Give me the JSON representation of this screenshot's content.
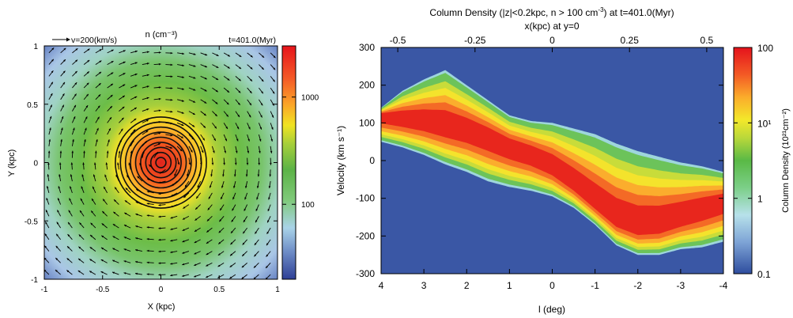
{
  "chart_data": [
    {
      "type": "heatmap",
      "title": "n (cm⁻³)",
      "annotation_left": "v=200(km/s)",
      "annotation_right": "t=401.0(Myr)",
      "xlabel": "X (kpc)",
      "ylabel": "Y (kpc)",
      "xlim": [
        -1,
        1
      ],
      "ylim": [
        -1,
        1
      ],
      "x_ticks": [
        {
          "value": -1,
          "label": "-1"
        },
        {
          "value": -0.5,
          "label": "-0.5"
        },
        {
          "value": 0,
          "label": "0"
        },
        {
          "value": 0.5,
          "label": "0.5"
        },
        {
          "value": 1,
          "label": "1"
        }
      ],
      "y_ticks": [
        {
          "value": 1,
          "label": "1"
        },
        {
          "value": 0.5,
          "label": "0.5"
        },
        {
          "value": 0,
          "label": "0"
        },
        {
          "value": -0.5,
          "label": "-0.5"
        },
        {
          "value": -1,
          "label": "-1"
        }
      ],
      "colorbar": {
        "scale": "log",
        "range": [
          20,
          3000
        ],
        "ticks": [
          {
            "value": 1000,
            "label": "1000"
          },
          {
            "value": 100,
            "label": "100"
          }
        ]
      },
      "vector_reference_kms": 200,
      "rotation": "clockwise"
    },
    {
      "type": "heatmap",
      "title_main": "Column Density (|z|<0.2kpc, n > 100 cm",
      "title_exp": "-3",
      "title_end": ") at t=401.0(Myr)",
      "top_axis_label": "x(kpc) at y=0",
      "xlabel": "l (deg)",
      "ylabel": "Velocity (km s⁻¹)",
      "xlim": [
        4,
        -4
      ],
      "ylim": [
        -300,
        300
      ],
      "x_ticks": [
        {
          "value": 4,
          "label": "4"
        },
        {
          "value": 3,
          "label": "3"
        },
        {
          "value": 2,
          "label": "2"
        },
        {
          "value": 1,
          "label": "1"
        },
        {
          "value": 0,
          "label": "0"
        },
        {
          "value": -1,
          "label": "-1"
        },
        {
          "value": -2,
          "label": "-2"
        },
        {
          "value": -3,
          "label": "-3"
        },
        {
          "value": -4,
          "label": "-4"
        }
      ],
      "top_ticks": [
        {
          "value": -0.5,
          "label": "-0.5"
        },
        {
          "value": -0.25,
          "label": "-0.25"
        },
        {
          "value": 0,
          "label": "0"
        },
        {
          "value": 0.25,
          "label": "0.25"
        },
        {
          "value": 0.5,
          "label": "0.5"
        }
      ],
      "y_ticks": [
        {
          "value": 300,
          "label": "300"
        },
        {
          "value": 200,
          "label": "200"
        },
        {
          "value": 100,
          "label": "100"
        },
        {
          "value": 0,
          "label": "0"
        },
        {
          "value": -100,
          "label": "-100"
        },
        {
          "value": -200,
          "label": "-200"
        },
        {
          "value": -300,
          "label": "-300"
        }
      ],
      "colorbar": {
        "scale": "log",
        "range": [
          0.1,
          100
        ],
        "label": "Column Density (10²¹cm⁻²)",
        "ticks": [
          {
            "value": 100,
            "label": "100"
          },
          {
            "value": 10,
            "label": "10¹"
          },
          {
            "value": 1,
            "label": "1"
          },
          {
            "value": 0.1,
            "label": "0.1"
          }
        ]
      },
      "envelope_upper": [
        [
          4,
          140
        ],
        [
          3.5,
          185
        ],
        [
          3.0,
          215
        ],
        [
          2.5,
          240
        ],
        [
          2.0,
          200
        ],
        [
          1.5,
          160
        ],
        [
          1.0,
          120
        ],
        [
          0.5,
          105
        ],
        [
          0,
          100
        ],
        [
          -0.5,
          85
        ],
        [
          -1.0,
          70
        ],
        [
          -1.5,
          45
        ],
        [
          -2.0,
          25
        ],
        [
          -2.5,
          10
        ],
        [
          -3.0,
          -5
        ],
        [
          -3.5,
          -15
        ],
        [
          -4,
          -30
        ]
      ],
      "envelope_lower": [
        [
          4,
          50
        ],
        [
          3.5,
          35
        ],
        [
          3.0,
          15
        ],
        [
          2.5,
          -10
        ],
        [
          2.0,
          -30
        ],
        [
          1.5,
          -55
        ],
        [
          1.0,
          -70
        ],
        [
          0.5,
          -80
        ],
        [
          0,
          -95
        ],
        [
          -0.5,
          -125
        ],
        [
          -1.0,
          -170
        ],
        [
          -1.5,
          -225
        ],
        [
          -2.0,
          -250
        ],
        [
          -2.5,
          -250
        ],
        [
          -3.0,
          -235
        ],
        [
          -3.5,
          -230
        ],
        [
          -4,
          -215
        ]
      ],
      "ridge_center": [
        [
          4,
          120
        ],
        [
          3,
          105
        ],
        [
          2,
          80
        ],
        [
          1.5,
          60
        ],
        [
          1,
          35
        ],
        [
          0.5,
          15
        ],
        [
          0,
          -15
        ],
        [
          -0.5,
          -60
        ],
        [
          -1,
          -110
        ],
        [
          -1.5,
          -155
        ],
        [
          -2,
          -175
        ],
        [
          -2.5,
          -170
        ],
        [
          -3,
          -150
        ],
        [
          -3.5,
          -130
        ],
        [
          -4,
          -110
        ]
      ]
    }
  ]
}
